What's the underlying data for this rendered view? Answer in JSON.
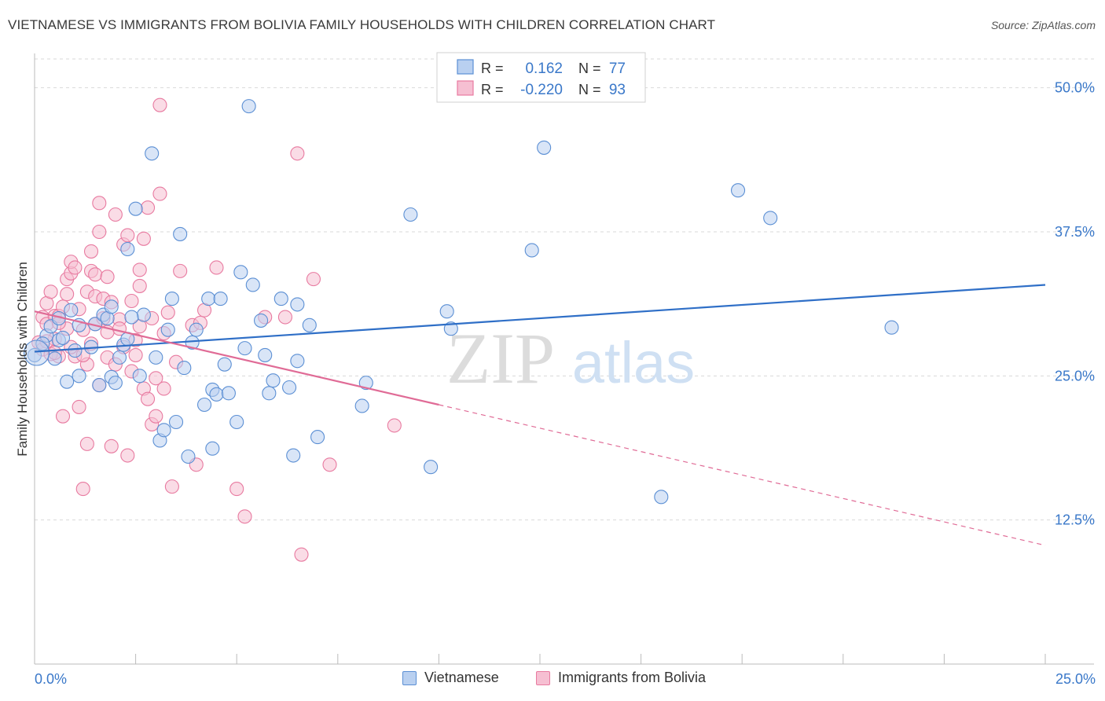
{
  "title": "VIETNAMESE VS IMMIGRANTS FROM BOLIVIA FAMILY HOUSEHOLDS WITH CHILDREN CORRELATION CHART",
  "source": "Source: ZipAtlas.com",
  "watermark": {
    "zip": "ZIP",
    "atlas": "atlas"
  },
  "colors": {
    "blue": "#5b8fd4",
    "blue_fill": "#b9d0f0",
    "blue_line": "#2f6fc7",
    "pink": "#e87aa0",
    "pink_fill": "#f6bfd2",
    "pink_line": "#e06b96",
    "axis_label": "#3a78c9",
    "grid": "#d9d9d9"
  },
  "legend": {
    "r_label": "R =",
    "n_label": "N =",
    "rows": [
      {
        "series": "Vietnamese",
        "r": "0.162",
        "n": "77"
      },
      {
        "series": "Immigrants from Bolivia",
        "r": "-0.220",
        "n": "93"
      }
    ]
  },
  "chart_data": {
    "type": "scatter",
    "title": "VIETNAMESE VS IMMIGRANTS FROM BOLIVIA FAMILY HOUSEHOLDS WITH CHILDREN CORRELATION CHART",
    "xlabel": "",
    "ylabel": "Family Households with Children",
    "xlim": [
      0,
      25
    ],
    "ylim": [
      0,
      52.5
    ],
    "x_tick_labels": [
      "0.0%",
      "25.0%"
    ],
    "y_ticks": [
      12.5,
      25.0,
      37.5,
      50.0
    ],
    "y_tick_labels": [
      "12.5%",
      "25.0%",
      "37.5%",
      "50.0%"
    ],
    "legend_position": "top-center",
    "series": [
      {
        "name": "Vietnamese",
        "trend": {
          "x": [
            0,
            25
          ],
          "y": [
            27.1,
            32.9
          ],
          "style": "solid"
        },
        "points": [
          [
            0.0,
            26.8
          ],
          [
            0.3,
            28.5
          ],
          [
            0.4,
            29.3
          ],
          [
            0.5,
            26.5
          ],
          [
            0.6,
            30.0
          ],
          [
            0.6,
            28.1
          ],
          [
            0.8,
            24.5
          ],
          [
            0.9,
            30.7
          ],
          [
            1.1,
            29.4
          ],
          [
            1.1,
            25.0
          ],
          [
            1.4,
            27.5
          ],
          [
            1.5,
            29.5
          ],
          [
            1.6,
            24.2
          ],
          [
            1.7,
            30.3
          ],
          [
            1.8,
            30.0
          ],
          [
            1.9,
            24.9
          ],
          [
            2.0,
            24.4
          ],
          [
            2.1,
            26.6
          ],
          [
            2.2,
            27.7
          ],
          [
            2.3,
            28.2
          ],
          [
            2.3,
            36.0
          ],
          [
            2.5,
            39.5
          ],
          [
            2.6,
            25.0
          ],
          [
            2.7,
            30.3
          ],
          [
            2.9,
            44.3
          ],
          [
            3.0,
            26.6
          ],
          [
            3.1,
            19.4
          ],
          [
            3.2,
            20.3
          ],
          [
            3.3,
            29.0
          ],
          [
            3.4,
            31.7
          ],
          [
            3.5,
            21.0
          ],
          [
            3.6,
            37.3
          ],
          [
            3.7,
            25.7
          ],
          [
            3.8,
            18.0
          ],
          [
            4.0,
            29.0
          ],
          [
            4.2,
            22.5
          ],
          [
            4.3,
            31.7
          ],
          [
            4.4,
            23.8
          ],
          [
            4.4,
            18.7
          ],
          [
            4.5,
            23.4
          ],
          [
            4.6,
            31.7
          ],
          [
            4.8,
            23.5
          ],
          [
            5.0,
            21.0
          ],
          [
            5.1,
            34.0
          ],
          [
            5.2,
            27.4
          ],
          [
            5.3,
            48.4
          ],
          [
            5.4,
            32.9
          ],
          [
            5.7,
            26.8
          ],
          [
            5.8,
            23.5
          ],
          [
            5.9,
            24.6
          ],
          [
            6.1,
            31.7
          ],
          [
            6.3,
            24.0
          ],
          [
            6.4,
            18.1
          ],
          [
            6.5,
            31.2
          ],
          [
            6.5,
            26.3
          ],
          [
            6.8,
            29.4
          ],
          [
            7.0,
            19.7
          ],
          [
            8.1,
            22.4
          ],
          [
            8.2,
            24.4
          ],
          [
            9.3,
            39.0
          ],
          [
            9.8,
            17.1
          ],
          [
            10.2,
            30.6
          ],
          [
            10.3,
            29.1
          ],
          [
            12.3,
            35.9
          ],
          [
            12.6,
            44.8
          ],
          [
            15.5,
            14.5
          ],
          [
            17.4,
            41.1
          ],
          [
            18.2,
            38.7
          ],
          [
            21.2,
            29.2
          ],
          [
            0.2,
            27.8
          ],
          [
            0.7,
            28.3
          ],
          [
            1.0,
            27.2
          ],
          [
            1.9,
            31.0
          ],
          [
            2.4,
            30.1
          ],
          [
            3.9,
            27.9
          ],
          [
            4.7,
            26.0
          ],
          [
            5.6,
            29.8
          ]
        ]
      },
      {
        "name": "Immigrants from Bolivia",
        "trend": {
          "x": [
            0,
            10
          ],
          "y": [
            30.6,
            22.5
          ],
          "style": "solid",
          "extended": {
            "x": [
              10,
              25
            ],
            "y": [
              22.5,
              10.3
            ],
            "style": "dashed"
          }
        },
        "points": [
          [
            0.1,
            27.9
          ],
          [
            0.2,
            27.3
          ],
          [
            0.2,
            30.1
          ],
          [
            0.3,
            29.5
          ],
          [
            0.3,
            31.3
          ],
          [
            0.4,
            32.3
          ],
          [
            0.5,
            28.2
          ],
          [
            0.5,
            30.2
          ],
          [
            0.6,
            30.2
          ],
          [
            0.6,
            26.7
          ],
          [
            0.7,
            21.5
          ],
          [
            0.7,
            31.0
          ],
          [
            0.8,
            32.1
          ],
          [
            0.8,
            33.4
          ],
          [
            0.8,
            29.1
          ],
          [
            0.9,
            33.9
          ],
          [
            0.9,
            34.9
          ],
          [
            1.0,
            34.4
          ],
          [
            1.0,
            26.7
          ],
          [
            1.1,
            22.3
          ],
          [
            1.2,
            15.2
          ],
          [
            1.2,
            29.0
          ],
          [
            1.3,
            32.3
          ],
          [
            1.3,
            19.1
          ],
          [
            1.3,
            26.0
          ],
          [
            1.4,
            35.8
          ],
          [
            1.4,
            34.1
          ],
          [
            1.5,
            29.5
          ],
          [
            1.5,
            33.8
          ],
          [
            1.5,
            31.9
          ],
          [
            1.6,
            37.5
          ],
          [
            1.6,
            40.0
          ],
          [
            1.7,
            31.7
          ],
          [
            1.7,
            30.0
          ],
          [
            1.8,
            26.6
          ],
          [
            1.8,
            33.6
          ],
          [
            1.9,
            31.4
          ],
          [
            1.9,
            18.9
          ],
          [
            2.0,
            26.0
          ],
          [
            2.0,
            39.0
          ],
          [
            2.1,
            29.9
          ],
          [
            2.2,
            36.4
          ],
          [
            2.2,
            27.5
          ],
          [
            2.3,
            37.2
          ],
          [
            2.3,
            18.1
          ],
          [
            2.4,
            31.5
          ],
          [
            2.5,
            28.1
          ],
          [
            2.5,
            26.8
          ],
          [
            2.6,
            29.3
          ],
          [
            2.6,
            34.2
          ],
          [
            2.6,
            32.8
          ],
          [
            2.7,
            36.9
          ],
          [
            2.7,
            23.9
          ],
          [
            2.8,
            39.6
          ],
          [
            2.9,
            30.0
          ],
          [
            2.9,
            20.8
          ],
          [
            3.0,
            24.8
          ],
          [
            3.1,
            48.5
          ],
          [
            3.1,
            40.8
          ],
          [
            3.2,
            28.7
          ],
          [
            3.2,
            23.9
          ],
          [
            3.3,
            30.5
          ],
          [
            3.4,
            15.4
          ],
          [
            3.6,
            34.1
          ],
          [
            3.9,
            29.4
          ],
          [
            4.0,
            17.3
          ],
          [
            4.1,
            29.6
          ],
          [
            4.2,
            30.7
          ],
          [
            4.5,
            34.4
          ],
          [
            5.0,
            15.2
          ],
          [
            5.2,
            12.8
          ],
          [
            5.7,
            30.1
          ],
          [
            6.2,
            30.1
          ],
          [
            6.5,
            44.3
          ],
          [
            6.6,
            9.5
          ],
          [
            6.9,
            33.4
          ],
          [
            7.3,
            17.3
          ],
          [
            8.9,
            20.7
          ],
          [
            0.4,
            26.9
          ],
          [
            0.6,
            29.6
          ],
          [
            1.1,
            30.8
          ],
          [
            1.4,
            27.8
          ],
          [
            1.8,
            28.8
          ],
          [
            2.4,
            25.4
          ],
          [
            3.0,
            21.5
          ],
          [
            0.9,
            27.5
          ],
          [
            1.6,
            24.2
          ],
          [
            2.1,
            29.1
          ],
          [
            0.3,
            28.0
          ],
          [
            0.5,
            27.0
          ],
          [
            1.2,
            26.8
          ],
          [
            2.8,
            23.0
          ],
          [
            3.5,
            26.2
          ]
        ]
      }
    ]
  },
  "bottom_legend": [
    {
      "label": "Vietnamese"
    },
    {
      "label": "Immigrants from Bolivia"
    }
  ]
}
